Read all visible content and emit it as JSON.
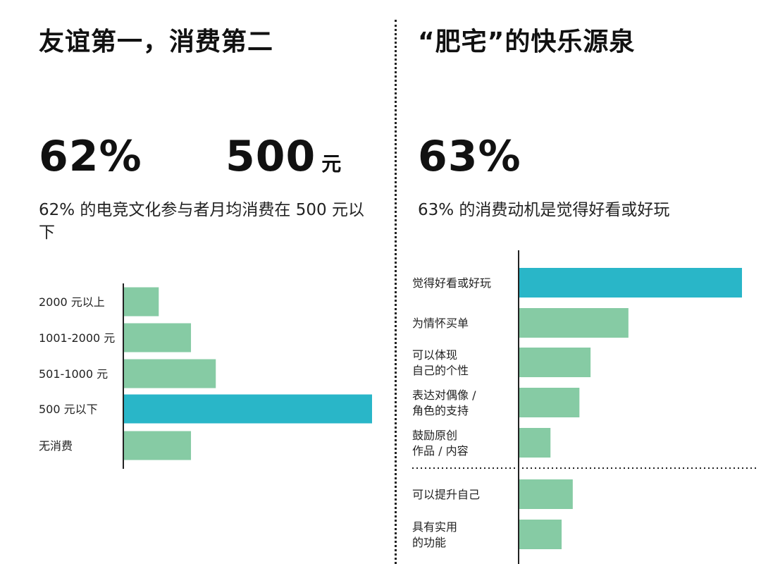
{
  "left": {
    "title": "友谊第一，消费第二",
    "stat_primary": "62%",
    "stat_secondary": "500",
    "stat_secondary_unit": "元",
    "description": "62% 的电竞文化参与者月均消费在 500 元以下"
  },
  "right": {
    "title": "“肥宅”的快乐源泉",
    "stat_primary": "63%",
    "description": "63% 的消费动机是觉得好看或好玩"
  },
  "colors": {
    "highlight": "#29B6C8",
    "bar": "#86CBA4",
    "axis": "#222222"
  },
  "chart_data": [
    {
      "type": "bar",
      "orientation": "horizontal",
      "categories": [
        "2000 元以上",
        "1001-2000 元",
        "501-1000 元",
        "500 元以下",
        "无消费"
      ],
      "values": [
        0.14,
        0.27,
        0.37,
        1.0,
        0.27
      ],
      "highlight_index": 3,
      "title": "",
      "xlabel": "",
      "ylabel": ""
    },
    {
      "type": "bar",
      "orientation": "horizontal",
      "categories": [
        "觉得好看或好玩",
        "为情怀买单",
        "可以体现\n自己的个性",
        "表达对偶像 /\n角色的支持",
        "鼓励原创\n作品 / 内容",
        "可以提升自己",
        "具有实用\n的功能"
      ],
      "values": [
        1.0,
        0.49,
        0.32,
        0.27,
        0.14,
        0.24,
        0.19
      ],
      "highlight_index": 0,
      "group_separator_after_index": 4,
      "title": "",
      "xlabel": "",
      "ylabel": ""
    }
  ]
}
